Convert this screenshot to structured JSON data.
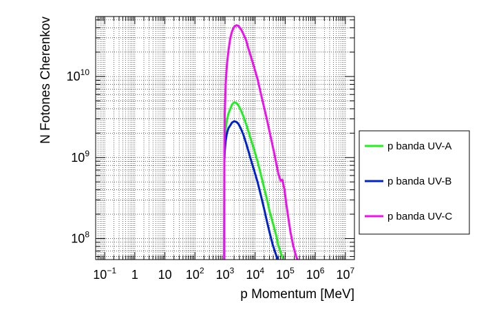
{
  "chart_data": {
    "type": "line",
    "title": "",
    "xlabel": "p Momentum [MeV]",
    "ylabel": "N Fotones Cherenkov",
    "xscale": "log",
    "yscale": "log",
    "xlim": [
      0.05,
      20000000
    ],
    "ylim": [
      55000000,
      55000000000
    ],
    "grid": true,
    "legend_position": "right, outside plot",
    "x_tick_labels": [
      {
        "value": 0.1,
        "base": "10",
        "exp": "−1"
      },
      {
        "value": 1,
        "base": "1",
        "exp": ""
      },
      {
        "value": 10,
        "base": "10",
        "exp": ""
      },
      {
        "value": 100,
        "base": "10",
        "exp": "2"
      },
      {
        "value": 1000,
        "base": "10",
        "exp": "3"
      },
      {
        "value": 10000,
        "base": "10",
        "exp": "4"
      },
      {
        "value": 100000,
        "base": "10",
        "exp": "5"
      },
      {
        "value": 1000000,
        "base": "10",
        "exp": "6"
      },
      {
        "value": 10000000,
        "base": "10",
        "exp": "7"
      }
    ],
    "y_tick_labels": [
      {
        "value": 100000000,
        "base": "10",
        "exp": "8"
      },
      {
        "value": 1000000000,
        "base": "10",
        "exp": "9"
      },
      {
        "value": 10000000000,
        "base": "10",
        "exp": "10"
      }
    ],
    "series": [
      {
        "name": "p banda UV-A",
        "color": "#22ee22",
        "x": [
          940,
          950,
          980,
          1050,
          1150,
          1300,
          1500,
          1700,
          2000,
          2400,
          2800,
          3300,
          4000,
          5000,
          6000,
          7500,
          9000,
          12000,
          15000,
          20000,
          25000,
          30000,
          40000,
          50000,
          60000,
          65000,
          75000,
          80000,
          85000
        ],
        "y": [
          55000000,
          1000000000,
          1500000000,
          2200000000,
          2900000000,
          3500000000,
          4000000000,
          4500000000,
          4800000000,
          4700000000,
          4400000000,
          3900000000,
          3300000000,
          2600000000,
          2100000000,
          1600000000,
          1300000000,
          900000000,
          650000000,
          420000000,
          300000000,
          220000000,
          150000000,
          110000000,
          80000000,
          75000000,
          62000000,
          60000000,
          57000000
        ]
      },
      {
        "name": "p banda UV-B",
        "color": "#0022cc",
        "x": [
          940,
          950,
          980,
          1050,
          1150,
          1300,
          1500,
          1700,
          2000,
          2400,
          2800,
          3300,
          4000,
          5000,
          6000,
          7500,
          9000,
          12000,
          15000,
          20000,
          25000,
          30000,
          38000,
          45000,
          52000,
          58000
        ],
        "y": [
          55000000,
          900000000,
          1200000000,
          1600000000,
          2000000000,
          2300000000,
          2500000000,
          2700000000,
          2800000000,
          2750000000,
          2600000000,
          2300000000,
          1950000000,
          1500000000,
          1200000000,
          900000000,
          720000000,
          500000000,
          360000000,
          230000000,
          160000000,
          120000000,
          85000000,
          70000000,
          60000000,
          55000000
        ]
      },
      {
        "name": "p banda UV-C",
        "color": "#ee11ee",
        "x": [
          940,
          950,
          980,
          1050,
          1150,
          1300,
          1500,
          1700,
          2000,
          2400,
          2800,
          3300,
          4000,
          5000,
          6000,
          7500,
          9000,
          12000,
          15000,
          20000,
          25000,
          30000,
          38000,
          45000,
          52000,
          60000,
          70000,
          80000,
          95000,
          110000,
          130000,
          150000,
          180000,
          210000,
          240000,
          260000
        ],
        "y": [
          55000000,
          1200000000,
          3500000000,
          8000000000,
          14000000000,
          21000000000,
          30000000000,
          36000000000,
          41000000000,
          43000000000,
          42000000000,
          39000000000,
          34000000000,
          28000000000,
          22000000000,
          17000000000,
          13500000000,
          9300000000,
          6500000000,
          4100000000,
          2900000000,
          2100000000,
          1400000000,
          1050000000,
          800000000,
          620000000,
          520000000,
          530000000,
          400000000,
          260000000,
          170000000,
          120000000,
          85000000,
          68000000,
          58000000,
          55000000
        ]
      }
    ]
  }
}
